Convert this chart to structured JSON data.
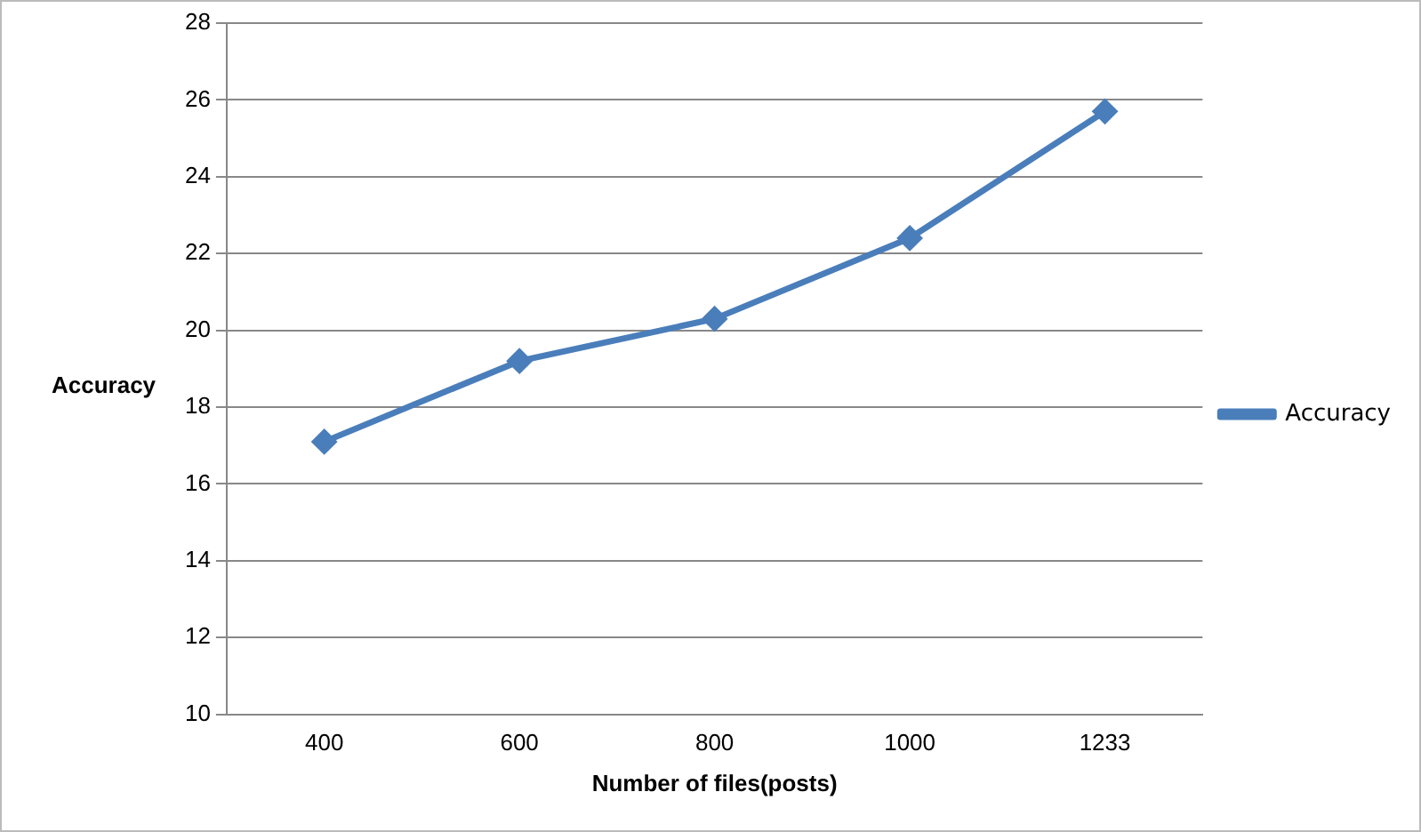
{
  "chart_data": {
    "type": "line",
    "xlabel": "Number of files(posts)",
    "ylabel": "Accuracy",
    "categories": [
      "400",
      "600",
      "800",
      "1000",
      "1233"
    ],
    "series": [
      {
        "name": "Accuracy",
        "color": "#4a7ebb",
        "values": [
          17.1,
          19.2,
          20.3,
          22.4,
          25.7
        ]
      }
    ],
    "ylim": [
      10,
      28
    ],
    "yticks": [
      10,
      12,
      14,
      16,
      18,
      20,
      22,
      24,
      26,
      28
    ],
    "grid": "y",
    "legend": "right",
    "marker": "diamond",
    "line_style": "solid"
  }
}
